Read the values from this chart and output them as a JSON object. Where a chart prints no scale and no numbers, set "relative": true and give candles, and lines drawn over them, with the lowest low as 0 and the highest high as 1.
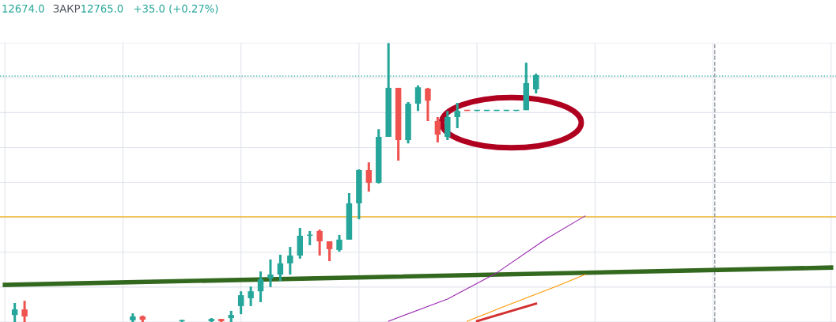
{
  "chart_data": {
    "type": "candlestick",
    "relative": true,
    "grid": true,
    "annotations": [
      "12674.0",
      "ЗАКР",
      "12765.0",
      "+35.0 (+0.27%)"
    ],
    "categories": [
      null,
      null,
      null,
      null,
      null,
      null,
      null,
      null,
      null,
      null,
      null,
      null,
      null,
      null,
      null,
      null,
      null,
      null,
      null,
      null,
      null,
      null,
      null,
      null,
      null,
      null,
      null,
      null,
      null,
      null,
      null,
      null,
      null,
      null,
      null,
      null,
      null,
      null,
      null,
      null,
      null,
      null,
      null,
      null,
      null,
      null,
      null,
      null,
      null,
      null,
      null,
      null,
      null,
      null,
      null,
      null,
      null,
      null,
      null,
      null,
      null,
      null,
      null,
      null,
      null,
      null,
      null,
      null,
      null,
      null,
      null,
      null,
      null,
      null,
      null,
      null,
      null,
      null,
      null,
      null,
      null,
      null,
      null,
      null,
      null
    ],
    "ohlc": [
      null,
      [
        0.025,
        0.068,
        0,
        0.045
      ],
      [
        0.045,
        0.076,
        0,
        0.02
      ],
      null,
      null,
      null,
      null,
      null,
      null,
      null,
      null,
      null,
      null,
      [
        0.006,
        0.031,
        0,
        0.02
      ],
      [
        0.02,
        0.023,
        0,
        0.008
      ],
      null,
      null,
      null,
      [
        0.003,
        0.008,
        0,
        0.006
      ],
      null,
      null,
      [
        0.003,
        0.014,
        0,
        0.011
      ],
      [
        0.011,
        0.011,
        0,
        0.003
      ],
      [
        0.014,
        0.04,
        0,
        0.025
      ],
      [
        0.057,
        0.11,
        0.028,
        0.096
      ],
      [
        0.085,
        0.127,
        0.057,
        0.11
      ],
      [
        0.11,
        0.181,
        0.071,
        0.153
      ],
      [
        0.156,
        0.224,
        0.125,
        0.17
      ],
      [
        0.17,
        0.241,
        0.147,
        0.21
      ],
      [
        0.21,
        0.269,
        0.17,
        0.238
      ],
      [
        0.238,
        0.337,
        0.227,
        0.309
      ],
      [
        0.309,
        0.326,
        0.275,
        0.312
      ],
      [
        0.326,
        0.331,
        0.238,
        0.289
      ],
      [
        0.289,
        0.289,
        0.218,
        0.261
      ],
      [
        0.258,
        0.312,
        0.252,
        0.295
      ],
      [
        0.295,
        0.462,
        0.295,
        0.425
      ],
      [
        0.425,
        0.547,
        0.368,
        0.544
      ],
      [
        0.544,
        0.572,
        0.467,
        0.499
      ],
      [
        0.499,
        0.691,
        0.496,
        0.663
      ],
      [
        0.663,
        1,
        0.663,
        0.839
      ],
      [
        0.839,
        0.839,
        0.578,
        0.652
      ],
      [
        0.652,
        0.788,
        0.64,
        0.782
      ],
      [
        0.782,
        0.847,
        0.756,
        0.841
      ],
      [
        0.836,
        0.839,
        0.72,
        0.793
      ],
      [
        0.72,
        0.734,
        0.643,
        0.671
      ],
      [
        0.663,
        0.756,
        0.652,
        0.734
      ],
      [
        0.734,
        0.785,
        0.694,
        0.756
      ],
      [
        0.759,
        0.759,
        0.756,
        0.756
      ],
      [
        0.756,
        0.759,
        0.756,
        0.759
      ],
      [
        0.756,
        0.759,
        0.756,
        0.759
      ],
      [
        0.756,
        0.759,
        0.756,
        0.759
      ],
      [
        0.756,
        0.759,
        0.756,
        0.759
      ],
      [
        0.756,
        0.759,
        0.756,
        0.759
      ],
      [
        0.759,
        0.929,
        0.759,
        0.856
      ],
      [
        0.833,
        0.89,
        0.819,
        0.884
      ],
      null,
      null,
      null,
      null,
      null,
      null,
      null,
      null,
      null,
      null,
      null,
      null,
      null,
      null,
      null,
      null,
      null,
      null,
      null,
      null,
      null,
      null,
      null,
      null,
      null,
      null,
      null,
      null,
      null,
      null
    ],
    "colors": [
      null,
      "#26a69a",
      "#ef5350",
      null,
      null,
      null,
      null,
      null,
      null,
      null,
      null,
      null,
      null,
      "#26a69a",
      "#ef5350",
      null,
      null,
      null,
      "#26a69a",
      null,
      null,
      "#26a69a",
      "#ef5350",
      "#26a69a",
      "#26a69a",
      "#26a69a",
      "#26a69a",
      "#26a69a",
      "#26a69a",
      "#26a69a",
      "#26a69a",
      "#26a69a",
      "#ef5350",
      "#ef5350",
      "#26a69a",
      "#26a69a",
      "#26a69a",
      "#ef5350",
      "#26a69a",
      "#26a69a",
      "#ef5350",
      "#26a69a",
      "#26a69a",
      "#ef5350",
      "#ef5350",
      "#26a69a",
      "#26a69a",
      "#ef5350",
      "#26a69a",
      "#26a69a",
      "#26a69a",
      "#26a69a",
      "#26a69a",
      "#26a69a",
      "#26a69a",
      null,
      null,
      null,
      null,
      null,
      null,
      null,
      null,
      null,
      null,
      null,
      null,
      null,
      null,
      null,
      null,
      null,
      null,
      null,
      null,
      null,
      null,
      null,
      null,
      null,
      null,
      null,
      null,
      null,
      null
    ],
    "series": [
      {
        "type": "line",
        "color": "#33691e",
        "values": [
          0.133,
          null,
          null,
          null,
          null,
          null,
          null,
          null,
          null,
          null,
          null,
          null,
          null,
          null,
          null,
          null,
          null,
          null,
          null,
          null,
          null,
          null,
          null,
          null,
          null,
          null,
          null,
          null,
          null,
          null,
          null,
          null,
          null,
          null,
          null,
          null,
          null,
          null,
          null,
          null,
          null,
          null,
          null,
          null,
          null,
          null,
          null,
          null,
          null,
          null,
          null,
          null,
          null,
          null,
          null,
          null,
          null,
          null,
          null,
          null,
          null,
          null,
          null,
          null,
          null,
          null,
          null,
          null,
          null,
          null,
          null,
          null,
          null,
          null,
          null,
          null,
          null,
          null,
          null,
          null,
          null,
          null,
          null,
          null,
          0.195
        ]
      },
      {
        "type": "line",
        "color": "#9c27b0",
        "values": [
          null,
          null,
          null,
          null,
          null,
          null,
          null,
          null,
          null,
          null,
          null,
          null,
          null,
          null,
          null,
          null,
          null,
          null,
          null,
          null,
          null,
          null,
          null,
          null,
          null,
          null,
          null,
          null,
          null,
          null,
          null,
          null,
          null,
          null,
          null,
          null,
          null,
          null,
          null,
          0.003,
          null,
          null,
          null,
          null,
          null,
          0.082,
          null,
          null,
          null,
          null,
          0.176,
          null,
          null,
          null,
          null,
          0.297,
          null,
          null,
          null,
          0.38,
          null,
          null,
          null,
          null,
          null,
          null,
          null,
          null,
          null,
          null,
          null,
          null,
          null,
          null,
          null,
          null,
          null,
          null,
          null,
          null,
          null,
          null,
          null,
          null,
          null
        ]
      },
      {
        "type": "line",
        "color": "#ff9800",
        "values": [
          null,
          null,
          null,
          null,
          null,
          null,
          null,
          null,
          null,
          null,
          null,
          null,
          null,
          null,
          null,
          null,
          null,
          null,
          null,
          null,
          null,
          null,
          null,
          null,
          null,
          null,
          null,
          null,
          null,
          null,
          null,
          null,
          null,
          null,
          null,
          null,
          null,
          null,
          null,
          null,
          null,
          null,
          null,
          null,
          null,
          null,
          null,
          0.003,
          null,
          null,
          null,
          0.059,
          null,
          null,
          null,
          null,
          0.127,
          null,
          null,
          0.17,
          null,
          null,
          null,
          null,
          null,
          null,
          null,
          null,
          null,
          null,
          null,
          null,
          null,
          null,
          null,
          null,
          null,
          null,
          null,
          null,
          null,
          null,
          null,
          null,
          null
        ]
      },
      {
        "type": "line",
        "color": "#d32f2f",
        "values": [
          null,
          null,
          null,
          null,
          null,
          null,
          null,
          null,
          null,
          null,
          null,
          null,
          null,
          null,
          null,
          null,
          null,
          null,
          null,
          null,
          null,
          null,
          null,
          null,
          null,
          null,
          null,
          null,
          null,
          null,
          null,
          null,
          null,
          null,
          null,
          null,
          null,
          null,
          null,
          null,
          null,
          null,
          null,
          null,
          null,
          null,
          null,
          null,
          0.003,
          null,
          null,
          null,
          null,
          null,
          0.066,
          null,
          null,
          null,
          null,
          null,
          null,
          null,
          null,
          null,
          null,
          null,
          null,
          null,
          null,
          null,
          null,
          null,
          null,
          null,
          null,
          null,
          null,
          null,
          null,
          null,
          null,
          null,
          null,
          null,
          null
        ]
      }
    ],
    "ref_lines": [
      {
        "axis": "y",
        "value": 0.377,
        "color": "#f0b429",
        "line_style": "solid"
      },
      {
        "axis": "y",
        "value": 0.881,
        "color": "#26a69a",
        "line_style": "dotted"
      }
    ]
  }
}
